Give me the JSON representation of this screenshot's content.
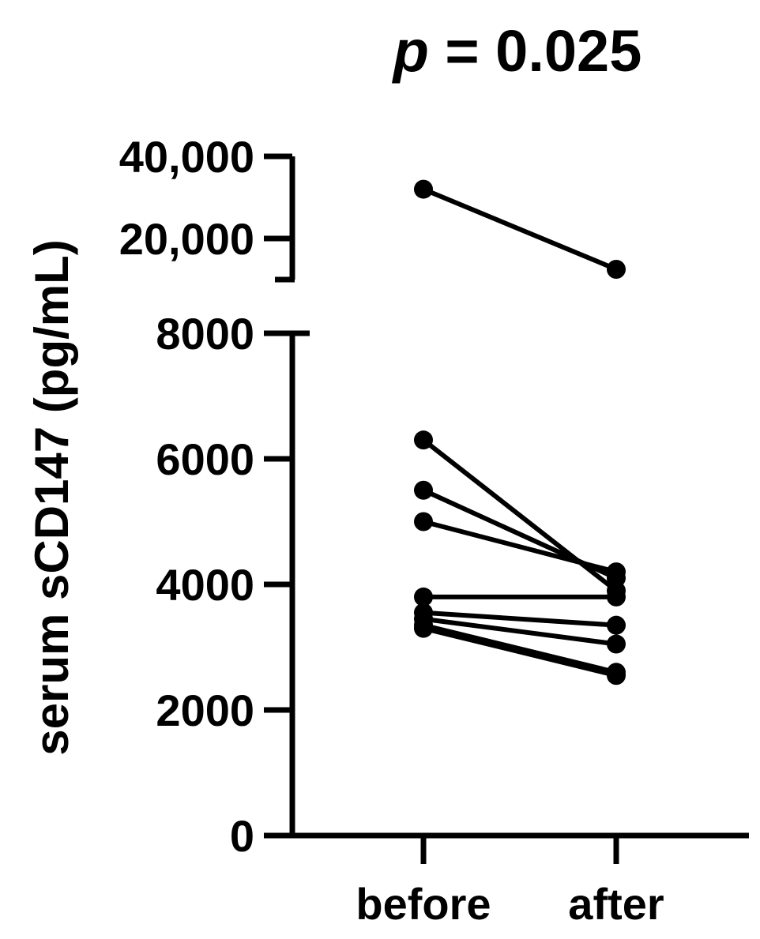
{
  "chart_data": {
    "type": "line",
    "title_italic": "p",
    "title_rest": " = 0.025",
    "xlabel": "",
    "ylabel": "serum sCD147 (pg/mL)",
    "categories": [
      "before",
      "after"
    ],
    "y_axis_broken": true,
    "lower_segment": {
      "ylim": [
        0,
        8000
      ],
      "ticks": [
        0,
        2000,
        4000,
        6000,
        8000
      ],
      "tick_labels": [
        "0",
        "2000",
        "4000",
        "6000",
        "8000"
      ]
    },
    "upper_segment": {
      "ylim": [
        10000,
        40000
      ],
      "ticks": [
        20000,
        40000
      ],
      "tick_labels": [
        "20,000",
        "40,000"
      ]
    },
    "series": [
      {
        "values": [
          32000,
          12500
        ]
      },
      {
        "values": [
          6300,
          3900
        ]
      },
      {
        "values": [
          5500,
          4100
        ]
      },
      {
        "values": [
          5000,
          4200
        ]
      },
      {
        "values": [
          3800,
          3800
        ]
      },
      {
        "values": [
          3550,
          3350
        ]
      },
      {
        "values": [
          3450,
          3050
        ]
      },
      {
        "values": [
          3350,
          2600
        ]
      },
      {
        "values": [
          3300,
          2550
        ]
      }
    ],
    "grid": false,
    "legend": "none",
    "color": "#000000"
  }
}
